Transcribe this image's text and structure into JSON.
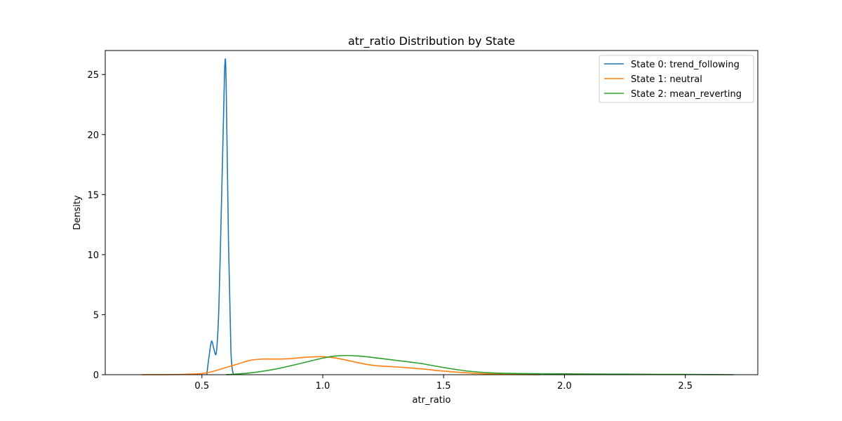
{
  "chart_data": {
    "type": "line",
    "title": "atr_ratio Distribution by State",
    "xlabel": "atr_ratio",
    "ylabel": "Density",
    "xlim": [
      0.1,
      2.8
    ],
    "ylim": [
      0,
      27
    ],
    "xticks": [
      "0.5",
      "1.0",
      "1.5",
      "2.0",
      "2.5"
    ],
    "yticks": [
      "0",
      "5",
      "10",
      "15",
      "20",
      "25"
    ],
    "grid": false,
    "legend_position": "top-right",
    "series": [
      {
        "name": "State 0: trend_following",
        "color": "#1f77b4",
        "points": [
          [
            0.52,
            0.0
          ],
          [
            0.53,
            1.6
          ],
          [
            0.54,
            2.8
          ],
          [
            0.55,
            2.1
          ],
          [
            0.56,
            1.9
          ],
          [
            0.57,
            5.5
          ],
          [
            0.58,
            13.5
          ],
          [
            0.59,
            22.0
          ],
          [
            0.595,
            25.9
          ],
          [
            0.6,
            24.5
          ],
          [
            0.61,
            11.0
          ],
          [
            0.62,
            2.0
          ],
          [
            0.63,
            0.0
          ]
        ]
      },
      {
        "name": "State 1: neutral",
        "color": "#ff7f0e",
        "points": [
          [
            0.25,
            0.0
          ],
          [
            0.4,
            0.02
          ],
          [
            0.5,
            0.1
          ],
          [
            0.55,
            0.3
          ],
          [
            0.6,
            0.6
          ],
          [
            0.65,
            0.9
          ],
          [
            0.7,
            1.2
          ],
          [
            0.75,
            1.3
          ],
          [
            0.8,
            1.3
          ],
          [
            0.85,
            1.32
          ],
          [
            0.9,
            1.4
          ],
          [
            0.95,
            1.48
          ],
          [
            1.0,
            1.5
          ],
          [
            1.05,
            1.4
          ],
          [
            1.1,
            1.2
          ],
          [
            1.2,
            0.8
          ],
          [
            1.3,
            0.65
          ],
          [
            1.4,
            0.5
          ],
          [
            1.5,
            0.3
          ],
          [
            1.6,
            0.15
          ],
          [
            1.7,
            0.06
          ],
          [
            1.8,
            0.02
          ],
          [
            1.9,
            0.0
          ]
        ]
      },
      {
        "name": "State 2: mean_reverting",
        "color": "#2ca02c",
        "points": [
          [
            0.6,
            0.0
          ],
          [
            0.7,
            0.15
          ],
          [
            0.8,
            0.45
          ],
          [
            0.9,
            0.9
          ],
          [
            1.0,
            1.38
          ],
          [
            1.05,
            1.55
          ],
          [
            1.1,
            1.6
          ],
          [
            1.15,
            1.55
          ],
          [
            1.2,
            1.45
          ],
          [
            1.3,
            1.2
          ],
          [
            1.4,
            0.95
          ],
          [
            1.5,
            0.6
          ],
          [
            1.6,
            0.3
          ],
          [
            1.7,
            0.15
          ],
          [
            1.8,
            0.1
          ],
          [
            2.0,
            0.07
          ],
          [
            2.2,
            0.05
          ],
          [
            2.4,
            0.03
          ],
          [
            2.6,
            0.01
          ],
          [
            2.7,
            0.0
          ]
        ]
      }
    ]
  }
}
